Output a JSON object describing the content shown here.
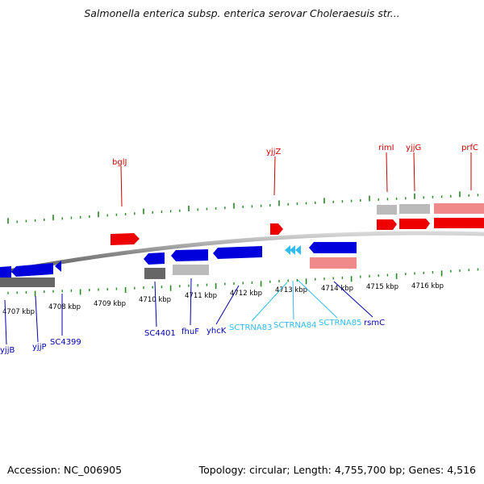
{
  "title": "Salmonella enterica subsp. enterica serovar Choleraesuis str...",
  "footer": {
    "accession": "Accession: NC_006905",
    "stats": "Topology: circular; Length: 4,755,700 bp; Genes: 4,516"
  },
  "colors": {
    "forward": "#ee0000",
    "forward_light": "#f08a8a",
    "reverse": "#0000dd",
    "rna": "#33bbee",
    "pseudo_dark": "#666666",
    "pseudo_light": "#bbbbbb",
    "tick": "#228822",
    "label_forward": "#cc0000",
    "label_reverse": "#0000aa",
    "label_rna": "#33bbee"
  },
  "scale": {
    "unit": "kbp",
    "ticks": [
      "4707 kbp",
      "4708 kbp",
      "4709 kbp",
      "4710 kbp",
      "4711 kbp",
      "4712 kbp",
      "4713 kbp",
      "4714 kbp",
      "4715 kbp",
      "4716 kbp"
    ]
  },
  "genes_forward": [
    {
      "label": "bglJ"
    },
    {
      "label": "yjjZ"
    },
    {
      "label": "rimI"
    },
    {
      "label": "yjjG"
    },
    {
      "label": "prfC"
    }
  ],
  "genes_reverse": [
    {
      "label": "yjjB"
    },
    {
      "label": "yjjP"
    },
    {
      "label": "SC4399"
    },
    {
      "label": "SC4401"
    },
    {
      "label": "fhuF"
    },
    {
      "label": "yhcK"
    },
    {
      "label": "SCTRNA83",
      "rna": true
    },
    {
      "label": "SCTRNA84",
      "rna": true
    },
    {
      "label": "SCTRNA85",
      "rna": true
    },
    {
      "label": "rsmC"
    }
  ]
}
